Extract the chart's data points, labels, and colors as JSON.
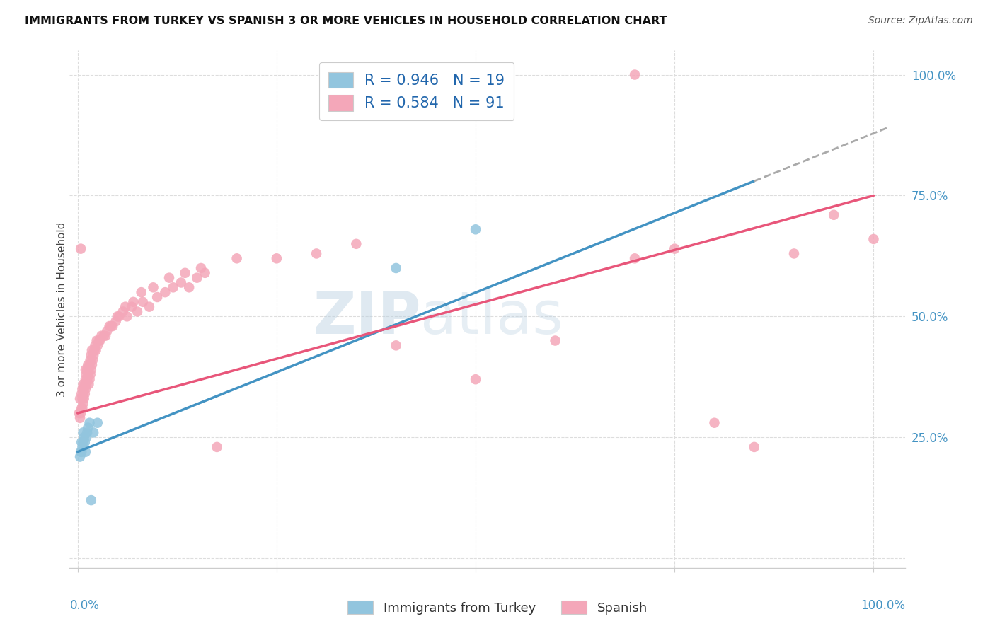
{
  "title": "IMMIGRANTS FROM TURKEY VS SPANISH 3 OR MORE VEHICLES IN HOUSEHOLD CORRELATION CHART",
  "source": "Source: ZipAtlas.com",
  "ylabel": "3 or more Vehicles in Household",
  "legend_label1": "Immigrants from Turkey",
  "legend_label2": "Spanish",
  "R1": 0.946,
  "N1": 19,
  "R2": 0.584,
  "N2": 91,
  "blue_color": "#92c5de",
  "pink_color": "#f4a7b9",
  "blue_line_color": "#4393c3",
  "pink_line_color": "#e8567a",
  "blue_scatter_x": [
    0.003,
    0.004,
    0.005,
    0.005,
    0.006,
    0.007,
    0.007,
    0.008,
    0.009,
    0.01,
    0.011,
    0.012,
    0.013,
    0.015,
    0.017,
    0.02,
    0.025,
    0.4,
    0.5
  ],
  "blue_scatter_y": [
    0.21,
    0.22,
    0.22,
    0.24,
    0.23,
    0.24,
    0.26,
    0.25,
    0.24,
    0.22,
    0.25,
    0.26,
    0.27,
    0.28,
    0.12,
    0.26,
    0.28,
    0.6,
    0.68
  ],
  "pink_scatter_x": [
    0.002,
    0.003,
    0.003,
    0.004,
    0.004,
    0.005,
    0.005,
    0.006,
    0.006,
    0.006,
    0.007,
    0.007,
    0.007,
    0.008,
    0.008,
    0.009,
    0.009,
    0.01,
    0.01,
    0.01,
    0.011,
    0.011,
    0.012,
    0.012,
    0.013,
    0.013,
    0.014,
    0.014,
    0.015,
    0.015,
    0.016,
    0.016,
    0.017,
    0.017,
    0.018,
    0.018,
    0.019,
    0.02,
    0.021,
    0.022,
    0.023,
    0.024,
    0.025,
    0.027,
    0.03,
    0.033,
    0.037,
    0.04,
    0.044,
    0.048,
    0.052,
    0.057,
    0.062,
    0.068,
    0.075,
    0.082,
    0.09,
    0.1,
    0.11,
    0.12,
    0.13,
    0.14,
    0.15,
    0.16,
    0.028,
    0.035,
    0.042,
    0.05,
    0.06,
    0.07,
    0.08,
    0.095,
    0.115,
    0.135,
    0.155,
    0.175,
    0.2,
    0.25,
    0.3,
    0.35,
    0.4,
    0.5,
    0.6,
    0.7,
    0.75,
    0.8,
    0.85,
    0.9,
    0.95,
    1.0,
    0.7
  ],
  "pink_scatter_y": [
    0.3,
    0.29,
    0.33,
    0.3,
    0.64,
    0.31,
    0.34,
    0.31,
    0.33,
    0.35,
    0.32,
    0.34,
    0.36,
    0.33,
    0.35,
    0.34,
    0.36,
    0.35,
    0.37,
    0.39,
    0.36,
    0.38,
    0.37,
    0.39,
    0.38,
    0.4,
    0.36,
    0.39,
    0.37,
    0.4,
    0.38,
    0.41,
    0.39,
    0.42,
    0.4,
    0.43,
    0.41,
    0.42,
    0.43,
    0.44,
    0.43,
    0.45,
    0.44,
    0.45,
    0.46,
    0.46,
    0.47,
    0.48,
    0.48,
    0.49,
    0.5,
    0.51,
    0.5,
    0.52,
    0.51,
    0.53,
    0.52,
    0.54,
    0.55,
    0.56,
    0.57,
    0.56,
    0.58,
    0.59,
    0.45,
    0.46,
    0.48,
    0.5,
    0.52,
    0.53,
    0.55,
    0.56,
    0.58,
    0.59,
    0.6,
    0.23,
    0.62,
    0.62,
    0.63,
    0.65,
    0.44,
    0.37,
    0.45,
    0.62,
    0.64,
    0.28,
    0.23,
    0.63,
    0.71,
    0.66,
    1.0
  ],
  "blue_line_x0": 0.0,
  "blue_line_y0": 0.22,
  "blue_line_x1": 0.85,
  "blue_line_y1": 0.78,
  "pink_line_x0": 0.0,
  "pink_line_y0": 0.3,
  "pink_line_x1": 1.0,
  "pink_line_y1": 0.75,
  "bg_color": "#ffffff",
  "grid_color": "#dddddd",
  "xlim": [
    -0.01,
    1.04
  ],
  "ylim": [
    -0.02,
    1.05
  ]
}
